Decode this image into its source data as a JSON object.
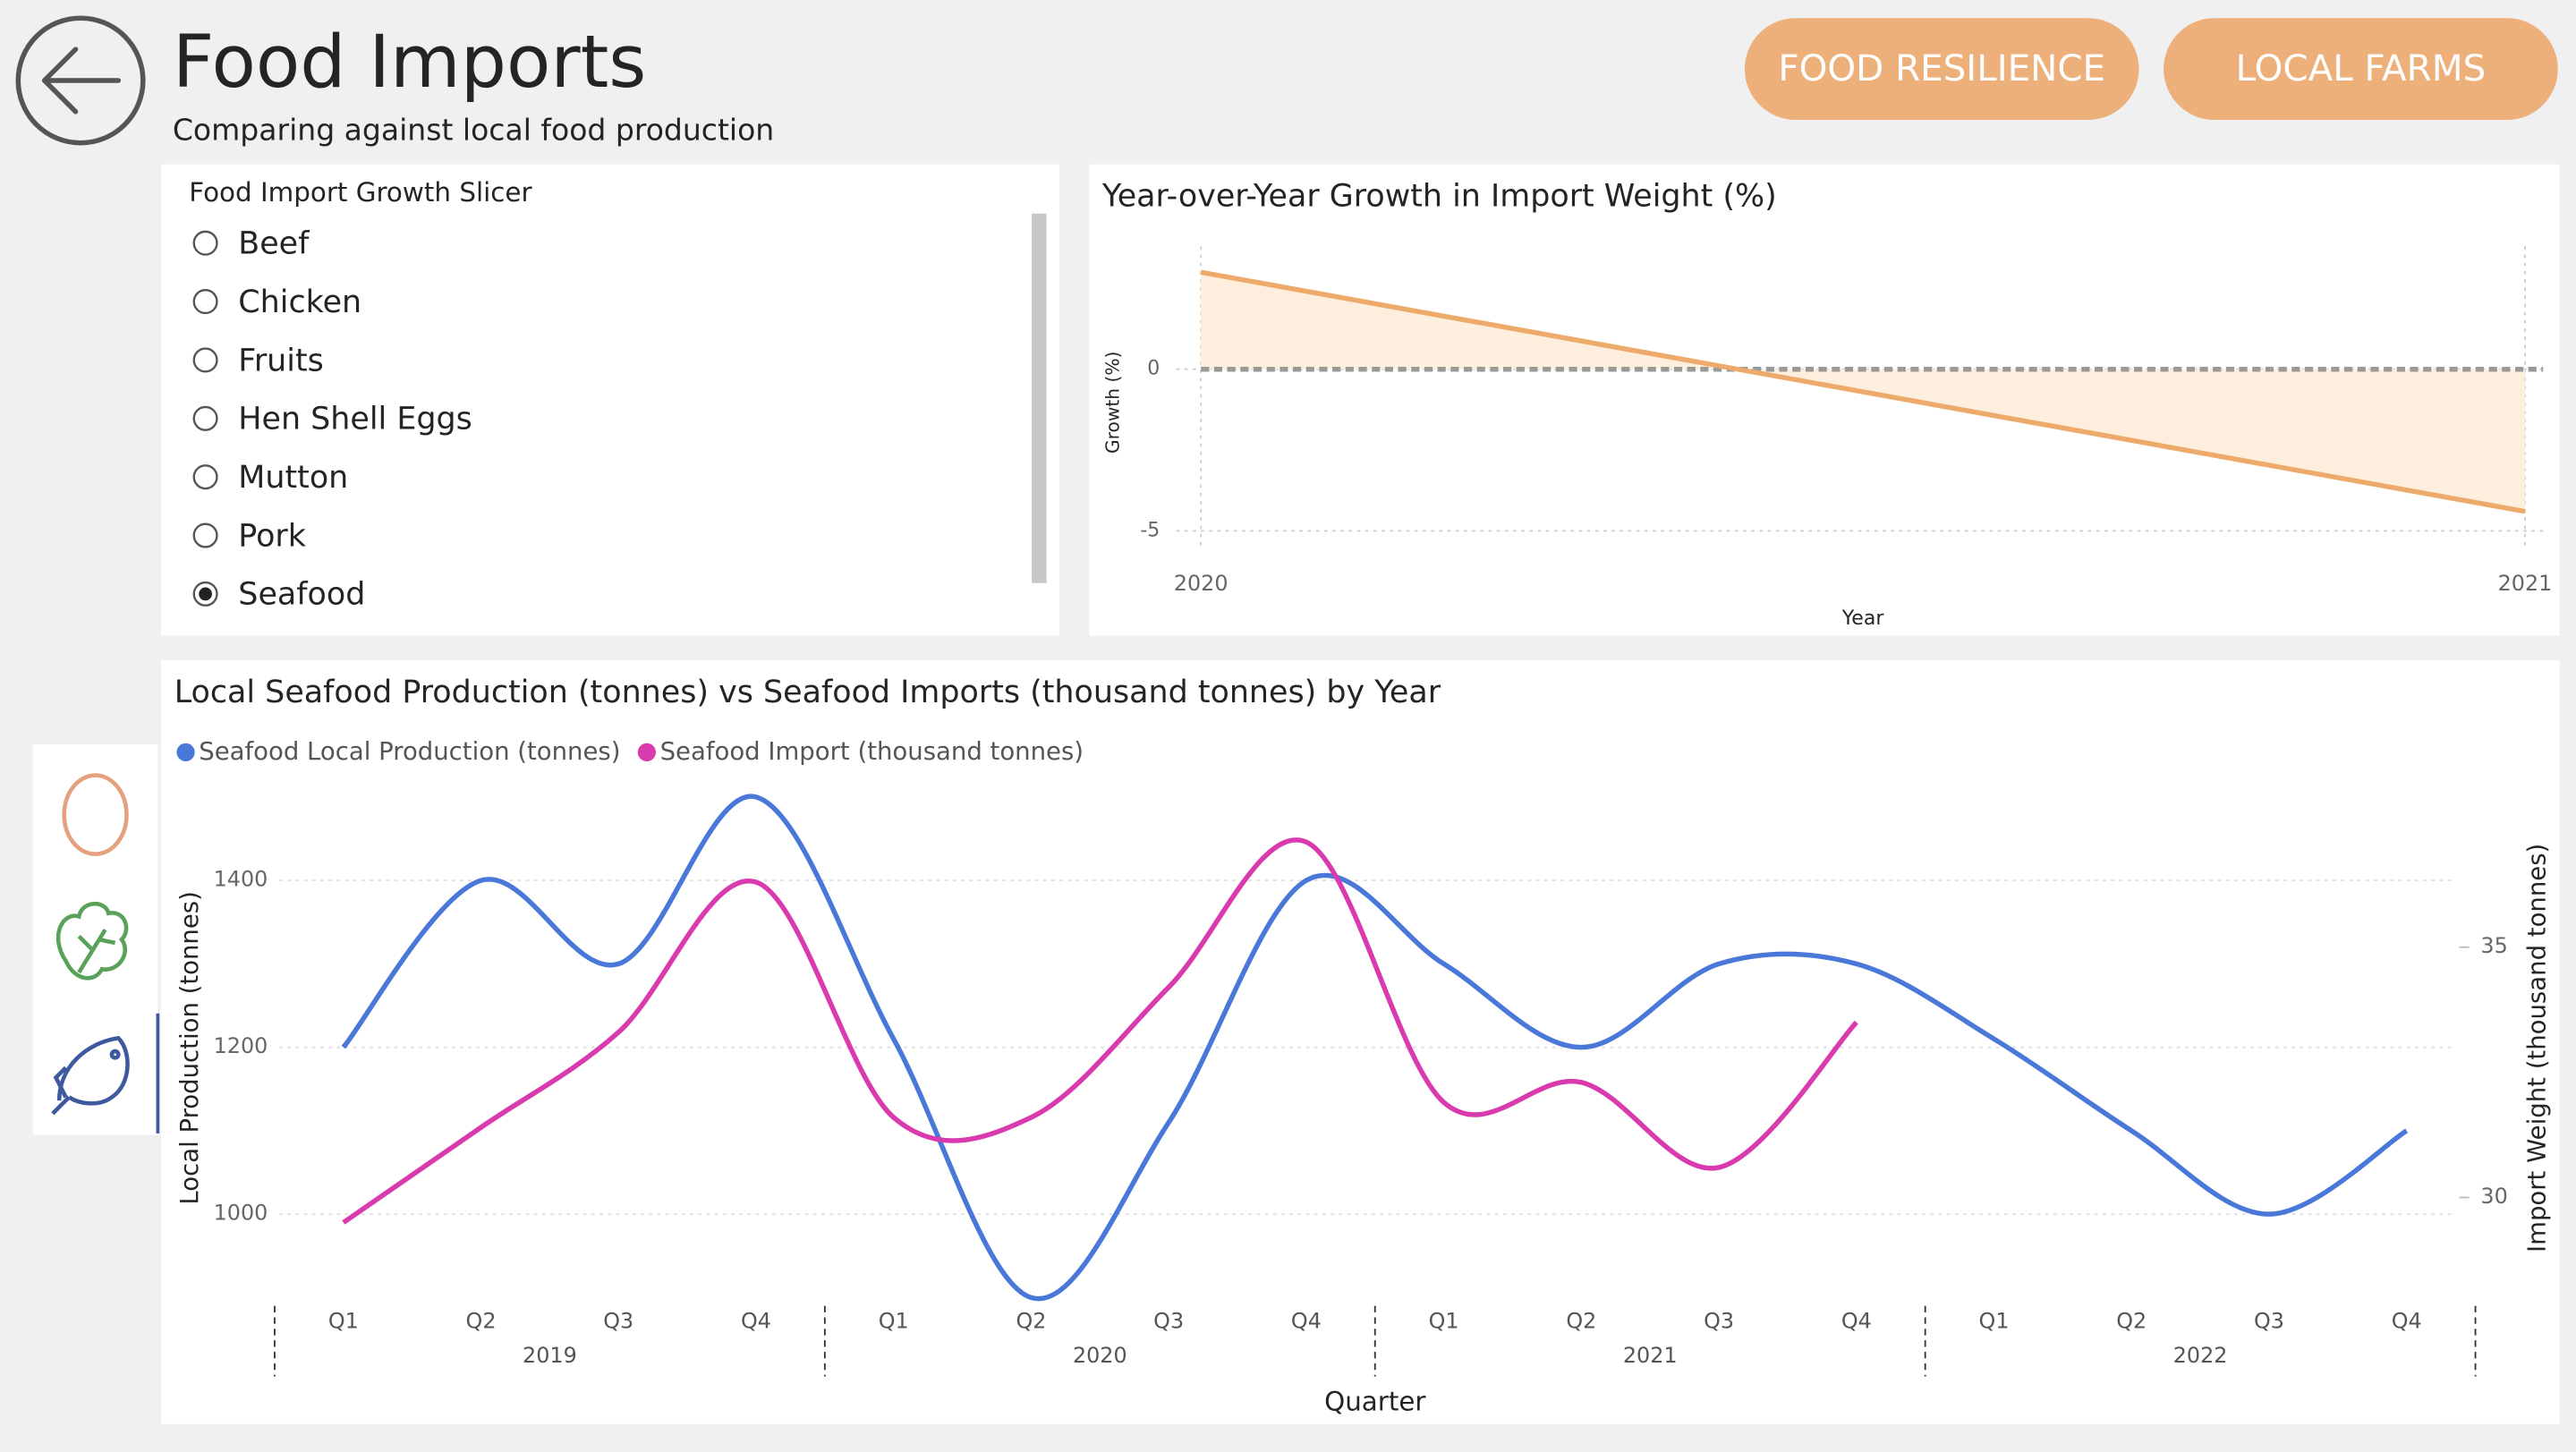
{
  "header": {
    "title": "Food Imports",
    "subtitle": "Comparing against local food production"
  },
  "nav_buttons": [
    "FOOD RESILIENCE",
    "LOCAL FARMS"
  ],
  "slicer": {
    "title": "Food Import Growth Slicer",
    "options": [
      {
        "label": "Beef",
        "selected": false
      },
      {
        "label": "Chicken",
        "selected": false
      },
      {
        "label": "Fruits",
        "selected": false
      },
      {
        "label": "Hen Shell Eggs",
        "selected": false
      },
      {
        "label": "Mutton",
        "selected": false
      },
      {
        "label": "Pork",
        "selected": false
      },
      {
        "label": "Seafood",
        "selected": true
      }
    ]
  },
  "chart_data": [
    {
      "type": "area",
      "title": "Year-over-Year Growth in Import Weight (%)",
      "x_label": "Year",
      "y_label": "Growth (%)",
      "x": [
        2020,
        2021
      ],
      "xlim": [
        2020,
        2021
      ],
      "xticks": [
        2020,
        2021
      ],
      "values": [
        3.0,
        -4.4
      ],
      "color": "#edaa6a",
      "fill": "#fdeedd",
      "ylim": [
        -5.6,
        3.8
      ],
      "yticks": [
        -5,
        0
      ],
      "reference_line": 0,
      "grid": true
    },
    {
      "type": "line",
      "title": "Local Seafood Production (tonnes) vs Seafood Imports (thousand tonnes) by Year",
      "x_label": "Quarter",
      "y_label": "Local Production (tonnes)",
      "y2_label": "Import Weight (thousand tonnes)",
      "categories": [
        "Q1",
        "Q2",
        "Q3",
        "Q4",
        "Q1",
        "Q2",
        "Q3",
        "Q4",
        "Q1",
        "Q2",
        "Q3",
        "Q4",
        "Q1",
        "Q2",
        "Q3",
        "Q4"
      ],
      "groups": [
        "2019",
        "2020",
        "2021",
        "2022"
      ],
      "series": [
        {
          "name": "Seafood Local Production (tonnes)",
          "color": "#4a78d8",
          "values": [
            1200,
            1400,
            1300,
            1500,
            1210,
            900,
            1110,
            1400,
            1300,
            1200,
            1300,
            1300,
            1210,
            1100,
            1000,
            1100
          ]
        },
        {
          "name": "Seafood Import (thousand tonnes)",
          "color": "#d93aad",
          "axis": "y2",
          "values": [
            29.5,
            31.4,
            33.3,
            36.3,
            31.6,
            31.6,
            34.2,
            37.1,
            31.9,
            32.3,
            30.6,
            33.5,
            null,
            null,
            null,
            null
          ]
        }
      ],
      "ylim": [
        900,
        1530
      ],
      "yticks": [
        1000,
        1200,
        1400
      ],
      "y2lim": [
        28,
        38.5
      ],
      "y2ticks": [
        30,
        35
      ],
      "grid": true,
      "legend": "top-left"
    }
  ]
}
